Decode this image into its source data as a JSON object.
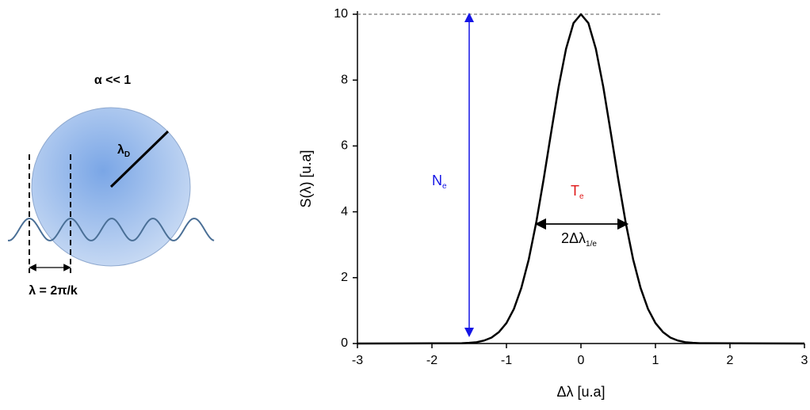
{
  "diagram": {
    "title": "α << 1",
    "radius_label": {
      "text": "λ",
      "sub": "D"
    },
    "wavelength_label": "λ = 2π/k"
  },
  "chart_data": {
    "type": "line",
    "x_label": "Δλ [u.a]",
    "y_label": "S(λ) [u.a]",
    "x": [
      -3,
      -1.6,
      -1.5,
      -1.4,
      -1.3,
      -1.2,
      -1.1,
      -1.0,
      -0.9,
      -0.8,
      -0.7,
      -0.6,
      -0.5,
      -0.4,
      -0.3,
      -0.2,
      -0.1,
      0,
      0.1,
      0.2,
      0.3,
      0.4,
      0.5,
      0.6,
      0.7,
      0.8,
      0.9,
      1.0,
      1.1,
      1.2,
      1.3,
      1.4,
      1.5,
      1.6,
      3
    ],
    "values": [
      0,
      0.01,
      0.02,
      0.04,
      0.09,
      0.18,
      0.35,
      0.62,
      1.05,
      1.69,
      2.56,
      3.68,
      5.0,
      6.41,
      7.79,
      8.95,
      9.73,
      10,
      9.73,
      8.95,
      7.79,
      6.41,
      5.0,
      3.68,
      2.56,
      1.69,
      1.05,
      0.62,
      0.35,
      0.18,
      0.09,
      0.04,
      0.02,
      0.01,
      0
    ],
    "color": "#000000",
    "xlim": [
      -3,
      3
    ],
    "ylim": [
      0,
      10
    ],
    "xticks": [
      -3,
      -2,
      -1,
      0,
      1,
      2,
      3
    ],
    "yticks": [
      0,
      2,
      4,
      6,
      8,
      10
    ],
    "annotations": [
      {
        "text": "N",
        "sub": "e",
        "color": "#1515e6"
      },
      {
        "text": "T",
        "sub": "e",
        "color": "#e01818"
      },
      {
        "text": "2Δλ",
        "sub": "1/e",
        "color": "#000000"
      }
    ]
  }
}
